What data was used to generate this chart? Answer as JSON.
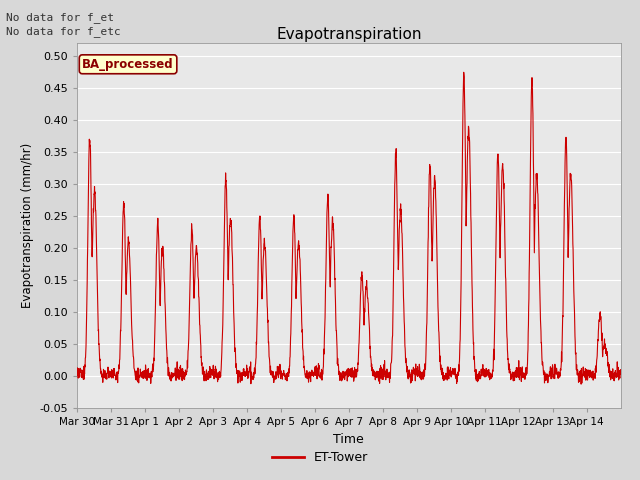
{
  "title": "Evapotranspiration",
  "ylabel": "Evapotranspiration (mm/hr)",
  "xlabel": "Time",
  "annotation_line1": "No data for f_et",
  "annotation_line2": "No data for f_etc",
  "legend_label": "ET-Tower",
  "legend_color": "#cc0000",
  "ba_processed_label": "BA_processed",
  "ba_processed_facecolor": "#ffffcc",
  "ba_processed_edgecolor": "#8b0000",
  "ba_processed_textcolor": "#8b0000",
  "ylim": [
    -0.05,
    0.52
  ],
  "yticks": [
    -0.05,
    0.0,
    0.05,
    0.1,
    0.15,
    0.2,
    0.25,
    0.3,
    0.35,
    0.4,
    0.45,
    0.5
  ],
  "ytick_labels": [
    "-0.05",
    "0.00",
    "0.05",
    "0.10",
    "0.15",
    "0.20",
    "0.25",
    "0.30",
    "0.35",
    "0.40",
    "0.45",
    "0.50"
  ],
  "line_color": "#cc0000",
  "line_width": 0.8,
  "fig_bg_color": "#d8d8d8",
  "plot_bg_color": "#e8e8e8",
  "grid_color": "#ffffff",
  "n_days": 16,
  "xtick_labels": [
    "Mar 30",
    "Mar 31",
    "Apr 1",
    "Apr 2",
    "Apr 3",
    "Apr 4",
    "Apr 5",
    "Apr 6",
    "Apr 7",
    "Apr 8",
    "Apr 9",
    "Apr 10",
    "Apr 11",
    "Apr 12",
    "Apr 13",
    "Apr 14"
  ],
  "day_peaks": [
    0.37,
    0.27,
    0.24,
    0.23,
    0.31,
    0.25,
    0.25,
    0.28,
    0.16,
    0.35,
    0.33,
    0.47,
    0.35,
    0.46,
    0.37,
    0.1
  ],
  "day_peaks2": [
    0.29,
    0.21,
    0.2,
    0.2,
    0.245,
    0.21,
    0.21,
    0.24,
    0.14,
    0.26,
    0.31,
    0.39,
    0.33,
    0.32,
    0.32,
    0.05
  ]
}
